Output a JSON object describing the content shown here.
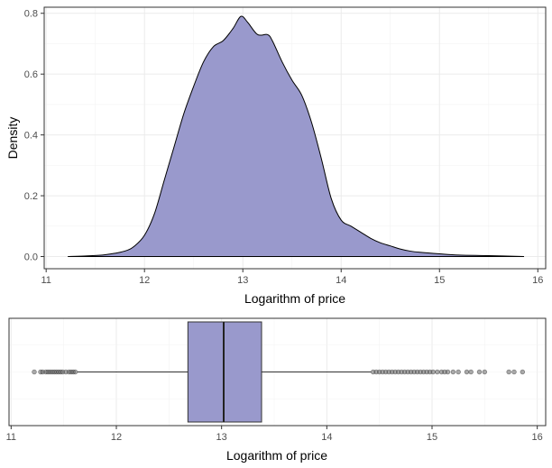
{
  "chart_data": [
    {
      "type": "area",
      "name": "density-plot",
      "xlabel": "Logarithm of price",
      "ylabel": "Density",
      "xlim": [
        10.98,
        16.08
      ],
      "ylim": [
        -0.04,
        0.82
      ],
      "x_ticks": [
        11,
        12,
        13,
        14,
        15,
        16
      ],
      "y_ticks": [
        0.0,
        0.2,
        0.4,
        0.6,
        0.8
      ],
      "y_tick_labels": [
        "0.0",
        "0.2",
        "0.4",
        "0.6",
        "0.8"
      ],
      "fill_color": "#9999cc",
      "line_color": "#000000",
      "grid": true,
      "points": [
        [
          11.22,
          0.0
        ],
        [
          11.4,
          0.002
        ],
        [
          11.6,
          0.006
        ],
        [
          11.8,
          0.018
        ],
        [
          11.9,
          0.035
        ],
        [
          12.0,
          0.07
        ],
        [
          12.1,
          0.14
        ],
        [
          12.2,
          0.25
        ],
        [
          12.3,
          0.36
        ],
        [
          12.4,
          0.47
        ],
        [
          12.5,
          0.56
        ],
        [
          12.6,
          0.64
        ],
        [
          12.7,
          0.69
        ],
        [
          12.8,
          0.71
        ],
        [
          12.9,
          0.75
        ],
        [
          12.98,
          0.79
        ],
        [
          13.05,
          0.77
        ],
        [
          13.15,
          0.73
        ],
        [
          13.25,
          0.73
        ],
        [
          13.3,
          0.71
        ],
        [
          13.4,
          0.64
        ],
        [
          13.5,
          0.58
        ],
        [
          13.6,
          0.53
        ],
        [
          13.7,
          0.44
        ],
        [
          13.8,
          0.32
        ],
        [
          13.9,
          0.19
        ],
        [
          14.0,
          0.12
        ],
        [
          14.1,
          0.1
        ],
        [
          14.2,
          0.08
        ],
        [
          14.3,
          0.06
        ],
        [
          14.4,
          0.045
        ],
        [
          14.5,
          0.035
        ],
        [
          14.6,
          0.025
        ],
        [
          14.7,
          0.018
        ],
        [
          14.8,
          0.014
        ],
        [
          15.0,
          0.009
        ],
        [
          15.2,
          0.005
        ],
        [
          15.5,
          0.003
        ],
        [
          15.86,
          0.0
        ]
      ]
    },
    {
      "type": "boxplot",
      "name": "box-plot",
      "xlabel": "Logarithm of price",
      "xlim": [
        10.98,
        16.08
      ],
      "x_ticks": [
        11,
        12,
        13,
        14,
        15,
        16
      ],
      "q1": 12.68,
      "median": 13.02,
      "q3": 13.38,
      "whisker_low": 11.63,
      "whisker_high": 14.42,
      "fill_color": "#9999cc",
      "grid": true,
      "outliers_low": [
        11.22,
        11.28,
        11.3,
        11.33,
        11.35,
        11.37,
        11.39,
        11.41,
        11.43,
        11.45,
        11.47,
        11.49,
        11.52,
        11.55,
        11.57,
        11.59,
        11.61
      ],
      "outliers_high": [
        14.44,
        14.47,
        14.5,
        14.53,
        14.56,
        14.59,
        14.62,
        14.65,
        14.68,
        14.71,
        14.74,
        14.77,
        14.8,
        14.83,
        14.86,
        14.89,
        14.92,
        14.95,
        14.98,
        15.01,
        15.05,
        15.09,
        15.12,
        15.15,
        15.2,
        15.25,
        15.33,
        15.37,
        15.45,
        15.5,
        15.73,
        15.78,
        15.86
      ]
    }
  ]
}
